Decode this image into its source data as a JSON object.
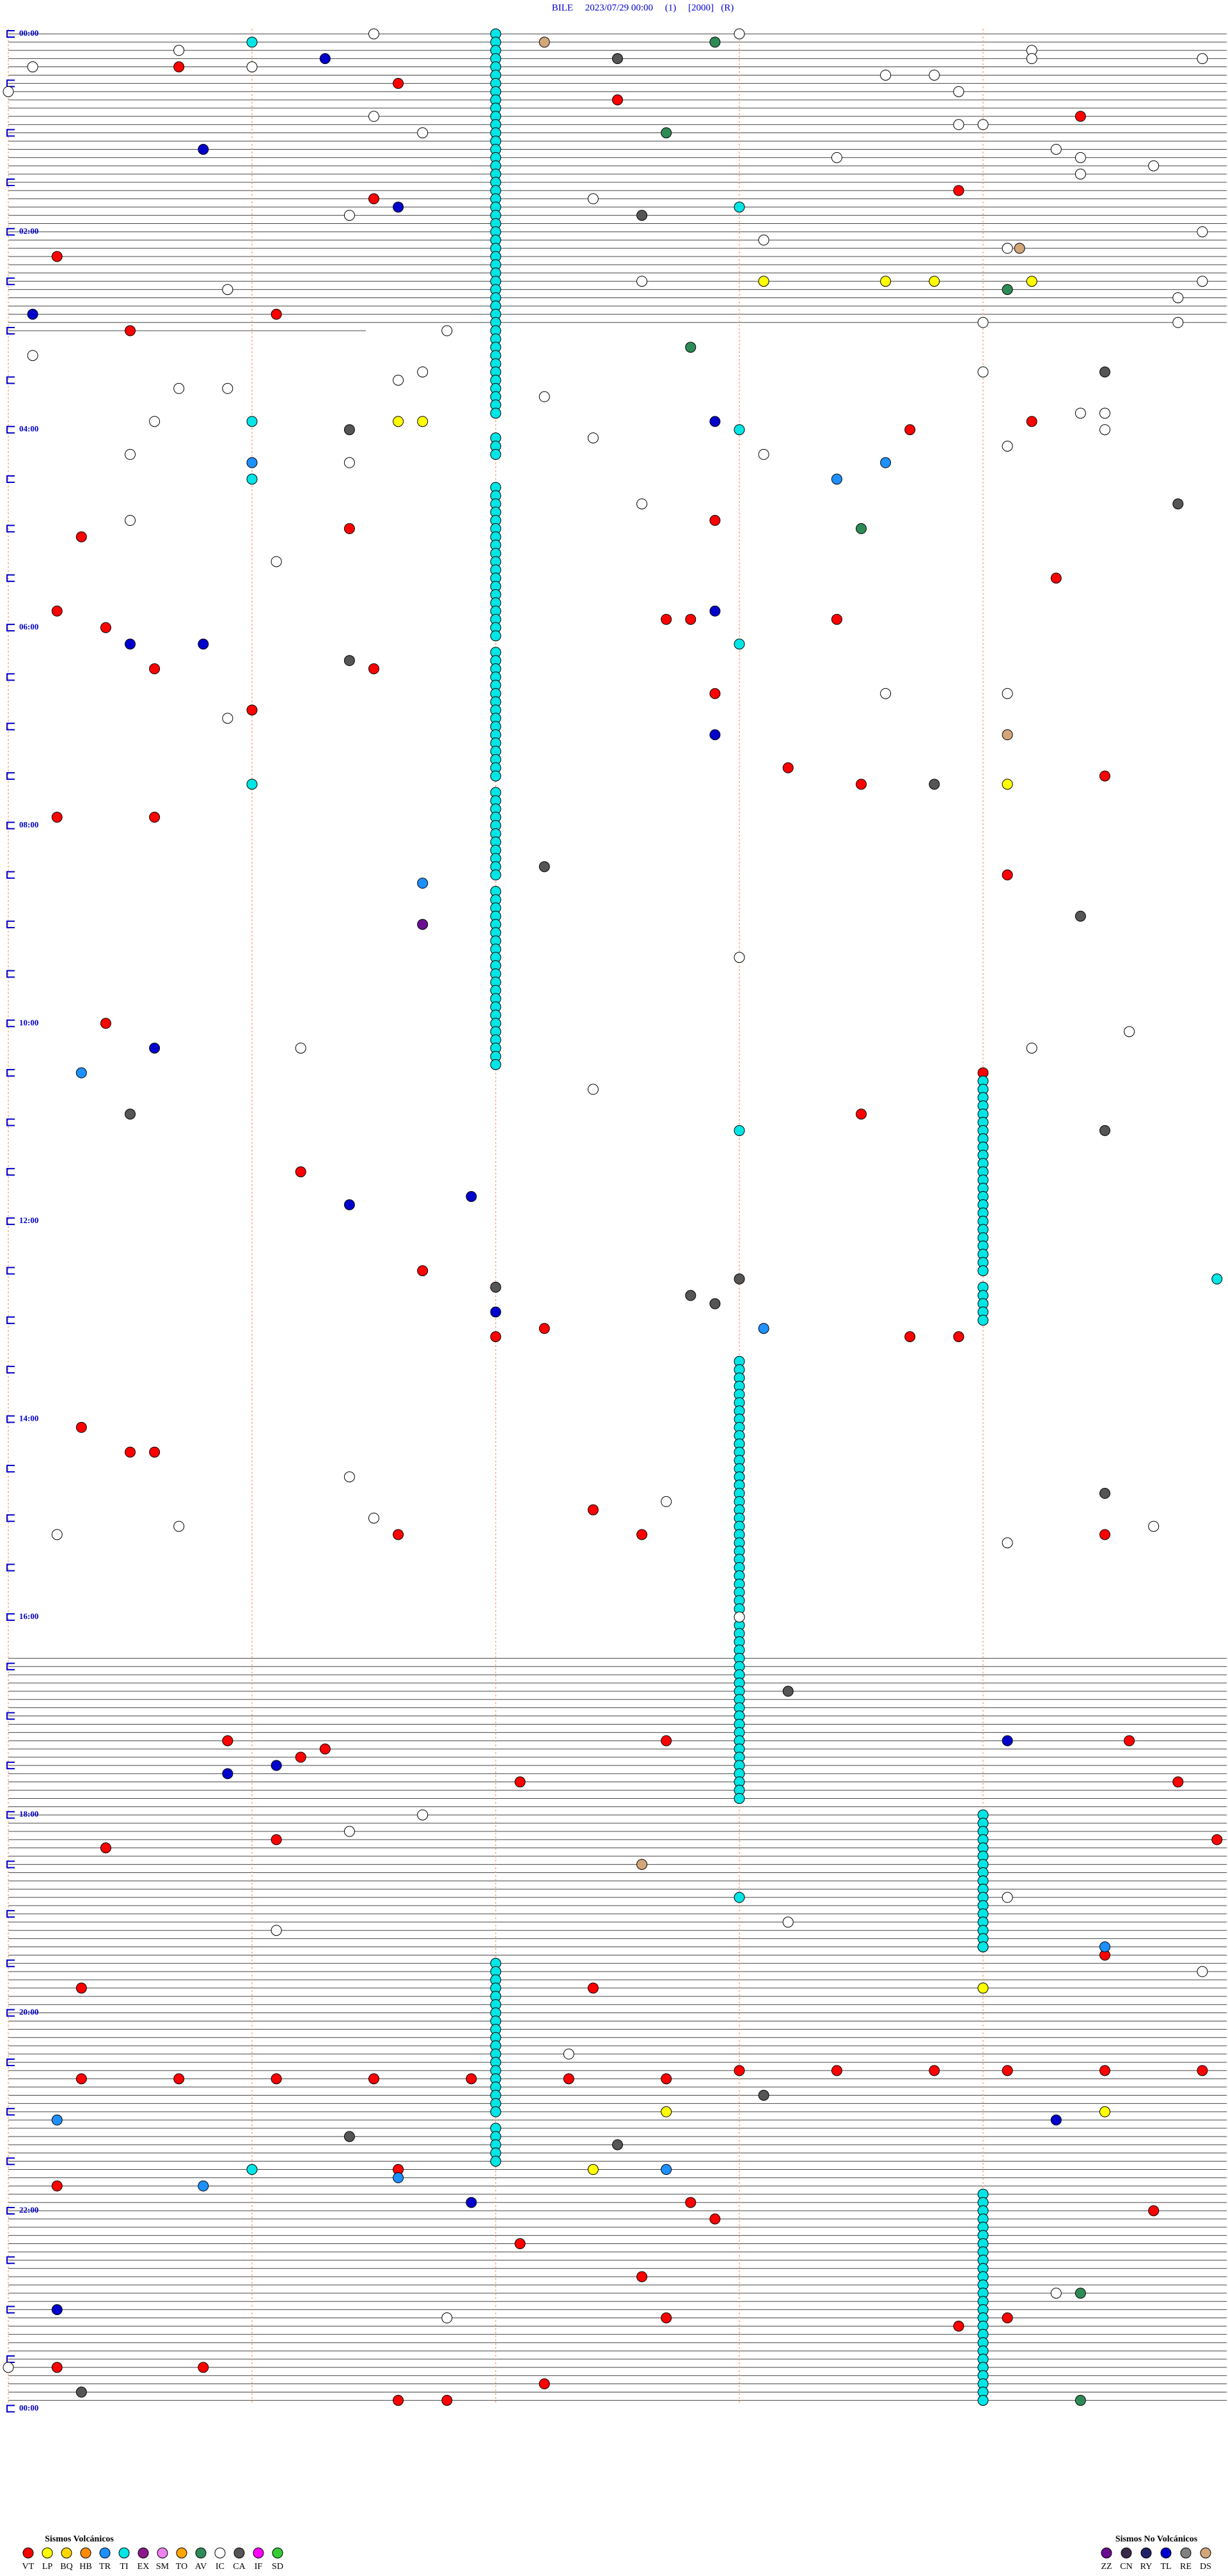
{
  "chart_data": {
    "type": "helicorder",
    "title": "BILE     2023/07/29 00:00     (1)     [2000]   (R)",
    "xlim": [
      0,
      5
    ],
    "xticks": [
      0,
      1,
      2,
      3,
      4
    ],
    "ylim": [
      0,
      1440
    ],
    "time_labels": [
      "00:00",
      "02:00",
      "04:00",
      "06:00",
      "08:00",
      "10:00",
      "12:00",
      "14:00",
      "16:00",
      "18:00",
      "20:00",
      "22:00",
      "00:00"
    ],
    "volcanic": {
      "title": "Sismos Volcánicos",
      "series": [
        {
          "name": "VT",
          "color": "#ff0000",
          "values": [
            20.7,
            31.6,
            42.5,
            54.4,
            98.9,
            101.5,
            135.2,
            171.1,
            180.5,
            239.2,
            243.7,
            297.9,
            301.4,
            305.3,
            334.3,
            350.2,
            357.7,
            357.8,
            358.4,
            360.4,
            385.6,
            386.5,
            402.9,
            411.0,
            448.2,
            454.5,
            458.5,
            475.2,
            475.6,
            514.1,
            600.4,
            634.0,
            658.5,
            691.2,
            751.7,
            787.2,
            792.0,
            793.7,
            793.9,
            845.3,
            860.5,
            860.6,
            897.4,
            911.6,
            912.6,
            914.5,
            1035.9,
            1037.7,
            1039.6,
            1041.3,
            1046.2,
            1062.1,
            1064.8,
            1096.1,
            1099.96,
            1100.4,
            1169.5,
            1185.3,
            1187.4,
            1238.0,
            1238.4,
            1238.8,
            1239.1,
            1239.5,
            1239.9,
            1240.3,
            1240.7,
            1241.1,
            1241.5,
            1241.9,
            1242.3,
            1242.7,
            1296.6,
            1305.2,
            1317.8,
            1324.7,
            1327.9,
            1342.1,
            1362.6,
            1387.7,
            1389.1,
            1393.9,
            1415.2,
            1415.8,
            1419.0,
            1427.2,
            1436.6,
            1436.8
          ]
        },
        {
          "name": "LP",
          "color": "#ffff00",
          "values": [
            153.1,
            153.6,
            153.8,
            154.2,
            236.6,
            236.7,
            459.1,
            1164.0,
            1189.0,
            1262.7,
            1264.5,
            1297.4
          ]
        },
        {
          "name": "BQ",
          "color": "#ffd700",
          "values": []
        },
        {
          "name": "HB",
          "color": "#ff8c00",
          "values": []
        },
        {
          "name": "TR",
          "color": "#1e90ff",
          "values": [
            261.0,
            263.6,
            273.4,
            516.7,
            630.3,
            788.1,
            1164.5,
            1265.2,
            1297.7,
            1301.6,
            1305.8
          ]
        },
        {
          "name": "TI",
          "color": "#00e5e5",
          "values": [
            2,
            7,
            12,
            17,
            22,
            27,
            32,
            37,
            42,
            47,
            52,
            57,
            62,
            67,
            72,
            77,
            82,
            87,
            92,
            97,
            102,
            107,
            112,
            117,
            122,
            127,
            132,
            137,
            142,
            147,
            152,
            157,
            162,
            167,
            172,
            177,
            182,
            187,
            192,
            197,
            202,
            207,
            212,
            217,
            222,
            227,
            232,
            247,
            252,
            257,
            277,
            282,
            287,
            292,
            297,
            302,
            307,
            312,
            317,
            322,
            327,
            332,
            337,
            342,
            347,
            352,
            357,
            362,
            367,
            377,
            382,
            387,
            392,
            397,
            402,
            407,
            412,
            417,
            422,
            427,
            432,
            437,
            442,
            447,
            452,
            462,
            467,
            472,
            477,
            482,
            487,
            492,
            497,
            502,
            507,
            512,
            522,
            527,
            532,
            537,
            542,
            547,
            552,
            557,
            562,
            567,
            572,
            577,
            582,
            587,
            592,
            597,
            602,
            607,
            612,
            617,
            622,
            627,
            1172,
            1177,
            1182,
            1187,
            1192,
            1197,
            1202,
            1207,
            1212,
            1217,
            1222,
            1227,
            1232,
            1237,
            1242,
            1247,
            1252,
            1257,
            1262,
            1272,
            1277,
            1282,
            1287,
            1292,
            808,
            813,
            818,
            823,
            828,
            833,
            838,
            843,
            848,
            853,
            858,
            863,
            868,
            873,
            878,
            883,
            888,
            893,
            898,
            903,
            908,
            913,
            918,
            923,
            928,
            933,
            938,
            943,
            948,
            953,
            958,
            963,
            968,
            973,
            978,
            983,
            988,
            993,
            998,
            1003,
            1008,
            1013,
            1018,
            1023,
            1028,
            1033,
            1038,
            1043,
            1048,
            1053,
            1058,
            1063,
            1068,
            1073,
            639,
            644,
            649,
            654,
            659,
            664,
            669,
            674,
            679,
            684,
            689,
            694,
            699,
            704,
            709,
            714,
            719,
            724,
            729,
            734,
            739,
            744,
            749,
            754,
            764,
            769,
            774,
            779,
            784,
            1084,
            1089,
            1094,
            1099,
            1104,
            1109,
            1114,
            1119,
            1124,
            1129,
            1134,
            1139,
            1144,
            1149,
            1154,
            1159,
            1164,
            1314,
            1319,
            1324,
            1329,
            1334,
            1339,
            1344,
            1349,
            1354,
            1359,
            1364,
            1369,
            1374,
            1379,
            1384,
            1389,
            1394,
            1399,
            1404,
            1409,
            1414,
            1419,
            1424,
            1429,
            1434,
            1439,
            6,
            236,
            271,
            456,
            1296,
            108,
            243,
            373,
            668,
            1133,
            759.96
          ]
        },
        {
          "name": "EX",
          "color": "#8b1a8b",
          "values": []
        },
        {
          "name": "SM",
          "color": "#ee82ee",
          "values": []
        },
        {
          "name": "TO",
          "color": "#ffa500",
          "values": []
        },
        {
          "name": "AV",
          "color": "#2e8b57",
          "values": [
            7.9,
            62.7,
            159.1,
            192.8,
            303.5,
            1374.4,
            1439.4
          ]
        },
        {
          "name": "IC",
          "color": "#ffffff",
          "values": [
            1.5,
            3.0,
            10.7,
            14.2,
            19.2,
            19.9,
            20.1,
            21.0,
            28.6,
            28.8,
            35.0,
            38.9,
            51.5,
            58.9,
            59.0,
            61.7,
            74.3,
            78.4,
            79.4,
            84.7,
            89.4,
            102.4,
            111.4,
            124.9,
            128.1,
            134.1,
            152.6,
            154.9,
            155.9,
            164.8,
            179.0,
            179.8,
            181.8,
            195.1,
            206.7,
            209.0,
            211.6,
            215.7,
            215.9,
            222.2,
            234.4,
            234.5,
            235.6,
            244.5,
            247.4,
            254.1,
            255.5,
            258.1,
            261.4,
            287.6,
            295.5,
            321.1,
            403.6,
            404.1,
            415.9,
            563.0,
            609.6,
            616.2,
            619.2,
            642.4,
            876.4,
            892.7,
            901.5,
            905.7,
            909.7,
            910.2,
            919.1,
            963.0,
            1081.7,
            1091.4,
            1134.1,
            1148.2,
            1151.1,
            1179.9,
            1227.3,
            1374.3,
            1386.8,
            1415.0
          ]
        },
        {
          "name": "CA",
          "color": "#555555",
          "values": [
            17.5,
            112.6,
            209.5,
            241.4,
            289.8,
            381.4,
            458.8,
            507.2,
            539.4,
            655.5,
            669.5,
            758.0,
            762.0,
            767.8,
            772.9,
            889.5,
            1008.2,
            1253.1,
            1276.4,
            1282.5,
            1430.3
          ]
        },
        {
          "name": "IF",
          "color": "#ff00ff",
          "values": []
        },
        {
          "name": "SD",
          "color": "#32cd32",
          "values": []
        }
      ]
    },
    "non_volcanic": {
      "title": "Sismos No Volcánicos",
      "series": [
        {
          "name": "ZZ",
          "color": "#6a0d91",
          "values": [
            541.7
          ]
        },
        {
          "name": "CN",
          "color": "#3a2a4a",
          "values": []
        },
        {
          "name": "RY",
          "color": "#222266",
          "values": []
        },
        {
          "name": "TL",
          "color": "#0000cd",
          "values": [
            16.3,
            70.8,
            106.6,
            170.1,
            237.9,
            352.9,
            370.5,
            370.8,
            427.9,
            615.6,
            706.9,
            711.4,
            777.0,
            1039.1,
            1051.1,
            1055.9,
            1269.3,
            1316.9,
            1380.2
          ]
        },
        {
          "name": "RE",
          "color": "#808080",
          "values": []
        },
        {
          "name": "DS",
          "color": "#d2a679",
          "values": [
            7.2,
            134.15,
            429.1,
            1112.6
          ]
        }
      ]
    }
  }
}
